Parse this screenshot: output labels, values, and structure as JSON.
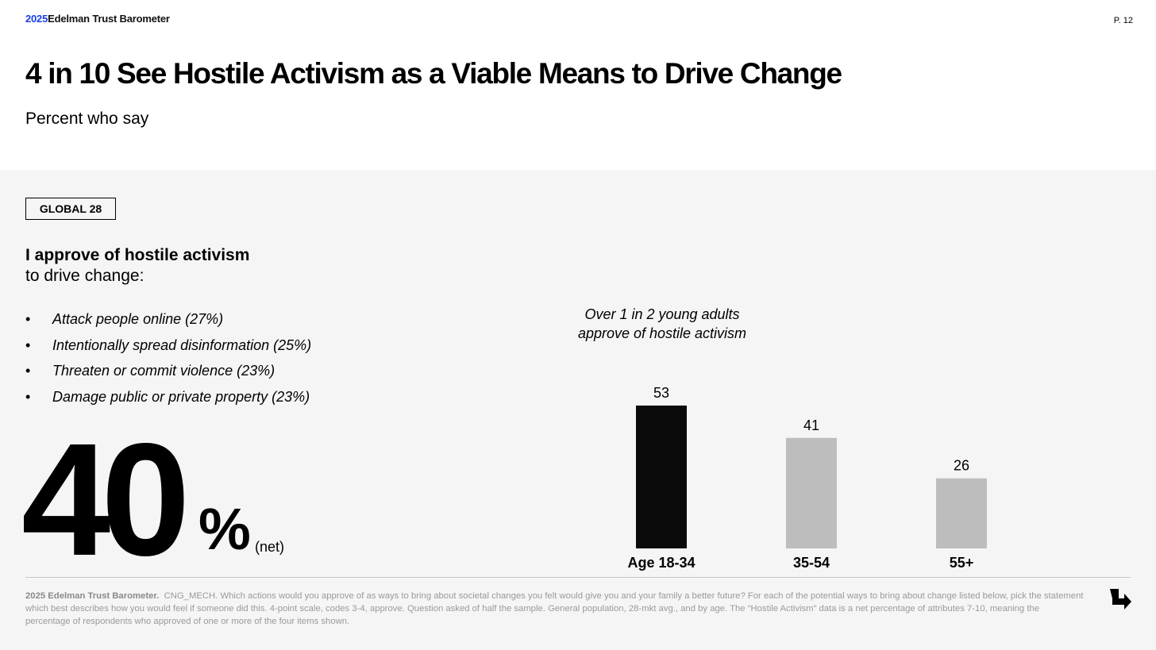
{
  "header": {
    "brand_year": "2025",
    "brand_name": "Edelman Trust Barometer",
    "page_number": "P. 12",
    "title": "4 in 10 See Hostile Activism as a Viable Means to Drive Change",
    "subtitle": "Percent who say"
  },
  "panel": {
    "badge": "GLOBAL 28",
    "statement_bold": "I approve of hostile activism",
    "statement_rest": "to drive change:",
    "bullets": [
      "Attack people online (27%)",
      "Intentionally spread disinformation (25%)",
      "Threaten or commit violence (23%)",
      "Damage public or private property (23%)"
    ],
    "big_number": "40",
    "big_unit": "%",
    "big_qualifier": "(net)",
    "annotation_line1": "Over 1 in 2 young adults",
    "annotation_line2": "approve of hostile activism"
  },
  "chart_data": {
    "type": "bar",
    "categories": [
      "Age 18-34",
      "35-54",
      "55+"
    ],
    "values": [
      53,
      41,
      26
    ],
    "bar_colors": [
      "#0a0a0a",
      "#bdbdbd",
      "#bdbdbd"
    ],
    "title": "",
    "xlabel": "",
    "ylabel": "",
    "ylim": [
      0,
      53
    ],
    "grid": false,
    "legend": "none"
  },
  "footnote": {
    "source_bold": "2025 Edelman Trust Barometer.",
    "text": "CNG_MECH. Which actions would you approve of as ways to bring about societal changes you felt would give you and your family a better future? For each of the potential ways to bring about change listed below, pick the statement which best describes how you would feel if someone did this. 4-point scale, codes 3-4, approve. Question asked of half the sample. General population, 28-mkt avg., and by age. The “Hostile Activism” data is a net percentage of attributes 7-10, meaning the percentage of respondents who approved of one or more of the four items shown."
  },
  "icons": {
    "next": "arrow-down-right-icon"
  }
}
